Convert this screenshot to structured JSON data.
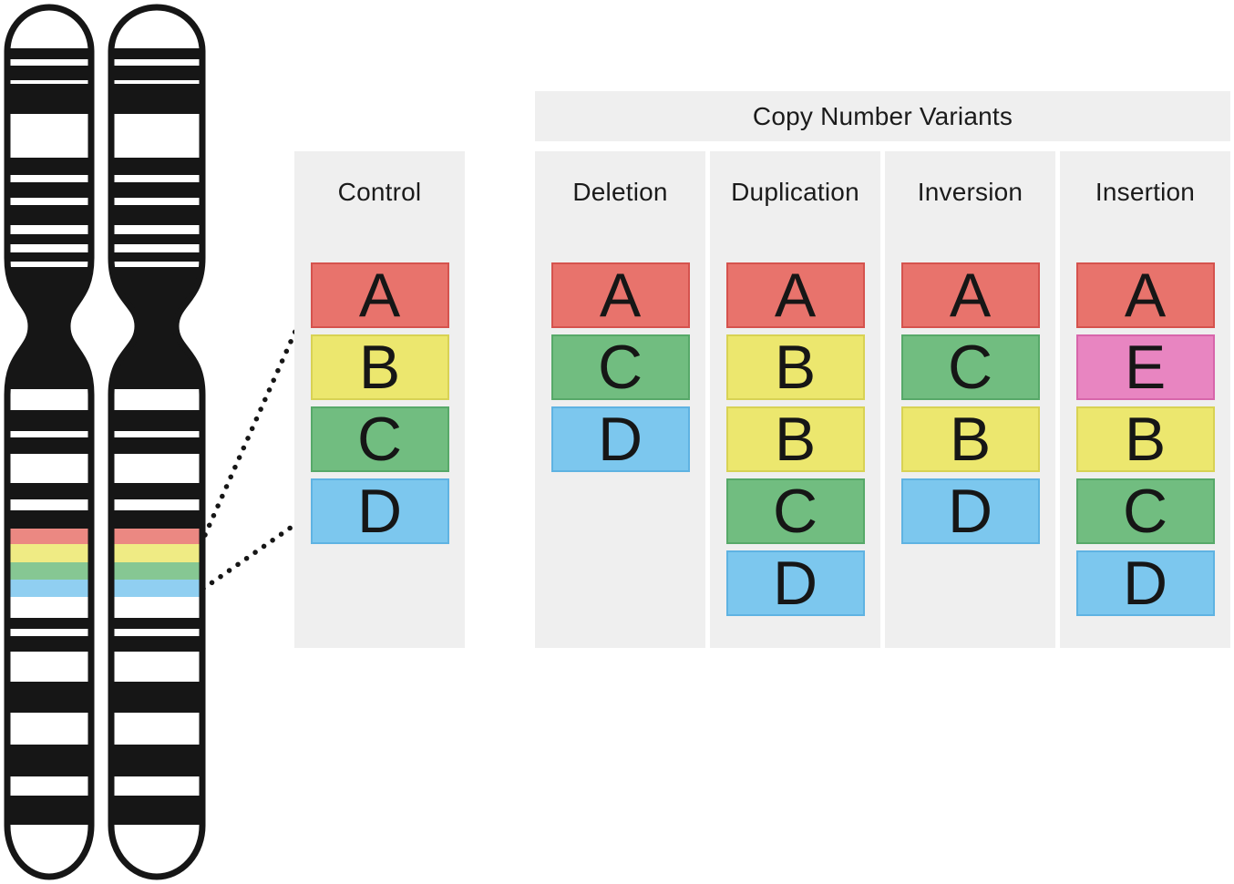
{
  "figure": {
    "cnv_group_label": "Copy Number Variants",
    "control": {
      "label": "Control",
      "blocks": [
        "A",
        "B",
        "C",
        "D"
      ]
    },
    "variants": [
      {
        "label": "Deletion",
        "blocks": [
          "A",
          "C",
          "D"
        ]
      },
      {
        "label": "Duplication",
        "blocks": [
          "A",
          "B",
          "B",
          "C",
          "D"
        ]
      },
      {
        "label": "Inversion",
        "blocks": [
          "A",
          "C",
          "B",
          "D"
        ]
      },
      {
        "label": "Insertion",
        "blocks": [
          "A",
          "E",
          "B",
          "C",
          "D"
        ]
      }
    ],
    "segment_colors": {
      "A": {
        "fill": "#E8736C",
        "border": "#D5534E"
      },
      "B": {
        "fill": "#ECE76E",
        "border": "#D8D254"
      },
      "C": {
        "fill": "#71BD80",
        "border": "#57A969"
      },
      "D": {
        "fill": "#7CC7EE",
        "border": "#5FB3E2"
      },
      "E": {
        "fill": "#E885C1",
        "border": "#D766AB"
      }
    },
    "chromosome_band_colors": [
      "#E8736C",
      "#ECE76E",
      "#71BD80",
      "#7CC7EE"
    ]
  },
  "colors": {
    "panel_bg": "#EFEFEF",
    "text": "#1B1B1B",
    "chromosome_ink": "#161616",
    "background": "#FFFFFF"
  }
}
